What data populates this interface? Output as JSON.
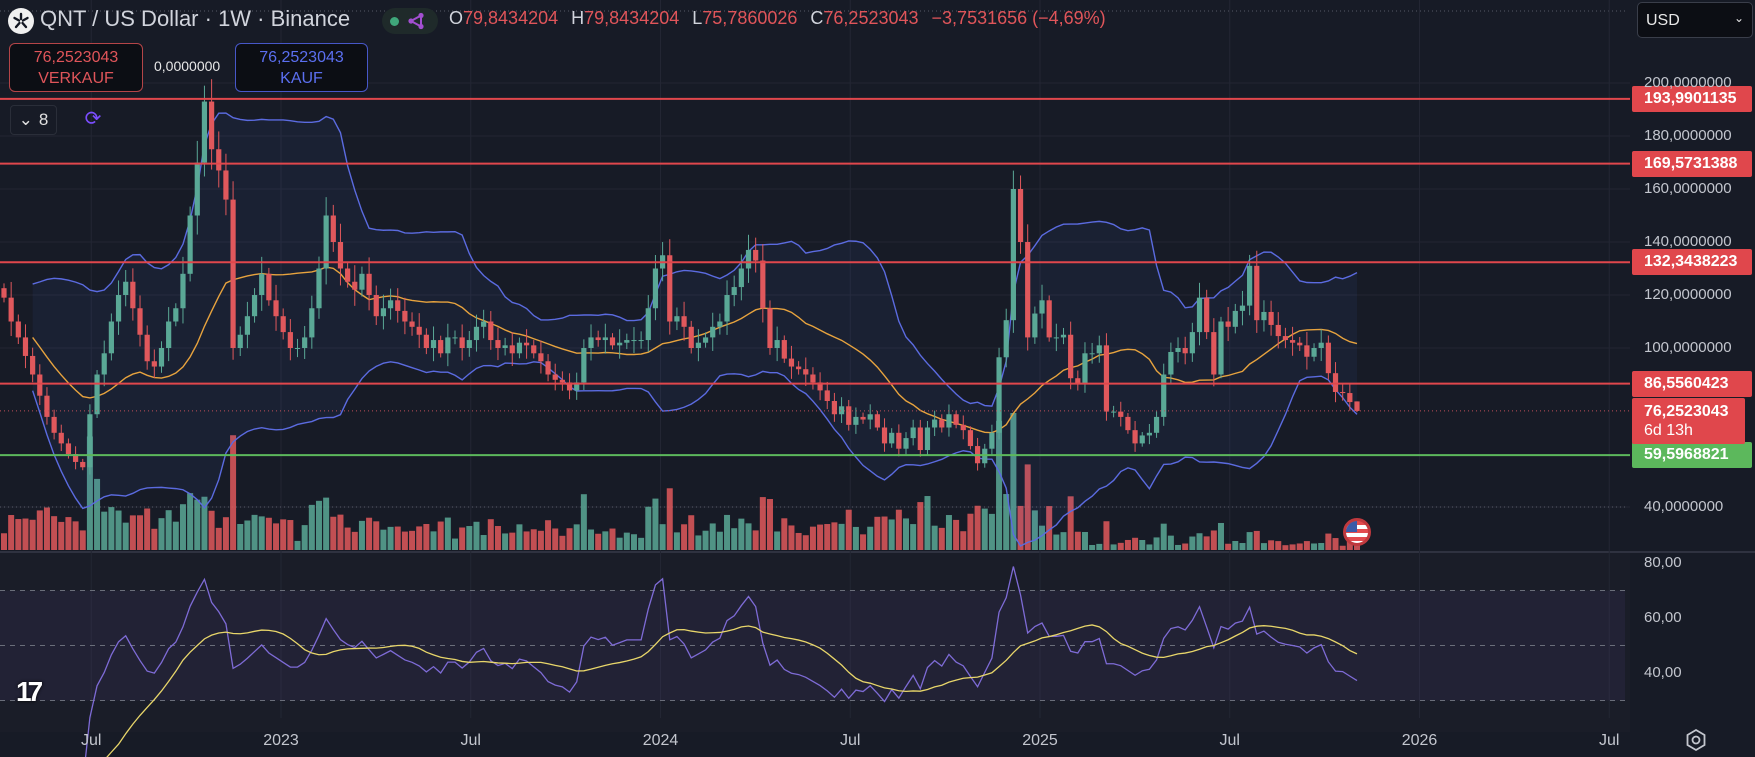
{
  "header": {
    "title": "QNT / US Dollar · 1W · Binance",
    "open_label": "O",
    "open": "79,8434204",
    "high_label": "H",
    "high": "79,8434204",
    "low_label": "L",
    "low": "75,7860026",
    "close_label": "C",
    "close": "76,2523043",
    "change": "−3,7531656 (−4,69%)"
  },
  "trade": {
    "sell_price": "76,2523043",
    "sell_label": "VERKAUF",
    "spread": "0,0000000",
    "buy_price": "76,2523043",
    "buy_label": "KAUF"
  },
  "indicators_toggle": {
    "count": "8"
  },
  "currency": {
    "selected": "USD"
  },
  "current_price": {
    "value": 76.2523043,
    "label": "76,2523043",
    "countdown": "6d 13h"
  },
  "colors": {
    "up": "#5aa896",
    "down": "#e0585c",
    "level": "#e0474c",
    "support": "#5cb85c",
    "bb": "#5b6be0",
    "sma": "#e7a33e",
    "rsi": "#7e6bd6",
    "rsi_ma": "#e8d66a"
  },
  "chart_data": {
    "type": "candlestick",
    "symbol": "QNT / US Dollar",
    "interval": "1W",
    "exchange": "Binance",
    "last_candle": {
      "open": 79.8434204,
      "high": 79.8434204,
      "low": 75.7860026,
      "close": 76.2523043
    },
    "closes": [
      119,
      110,
      104,
      97,
      90,
      82,
      74,
      68,
      64,
      60,
      57,
      55,
      75,
      90,
      98,
      110,
      120,
      125,
      115,
      105,
      95,
      93,
      100,
      110,
      115,
      128,
      150,
      170,
      193,
      175,
      167,
      156,
      100,
      105,
      112,
      120,
      128,
      118,
      112,
      106,
      100,
      100,
      104,
      115,
      130,
      150,
      140,
      130,
      125,
      122,
      128,
      120,
      112,
      115,
      118,
      114,
      110,
      108,
      105,
      100,
      103,
      98,
      104,
      104,
      100,
      103,
      108,
      110,
      103,
      100,
      101,
      98,
      102,
      101,
      98,
      95,
      90,
      88,
      87,
      84,
      87,
      100,
      104,
      103,
      104,
      101,
      102,
      103,
      103,
      103,
      115,
      130,
      135,
      110,
      112,
      108,
      100,
      102,
      104,
      108,
      110,
      120,
      123,
      130,
      137,
      133,
      115,
      100,
      103,
      96,
      93,
      92,
      90,
      87,
      84,
      80,
      75,
      78,
      71,
      74,
      73,
      75,
      70,
      64,
      68,
      62,
      66,
      70,
      61.5,
      70,
      73,
      70,
      75,
      71,
      69,
      63,
      56.5,
      62,
      68,
      96.5,
      110.5,
      160,
      140,
      104,
      113,
      118,
      104,
      104,
      105,
      88.6,
      86.8,
      98,
      98,
      101,
      76,
      76,
      74,
      69,
      64,
      67,
      68,
      74,
      90,
      98.5,
      100,
      98,
      106,
      119,
      106,
      90,
      110,
      108,
      114,
      116,
      131,
      110.5,
      113.6,
      108.7,
      104.5,
      103,
      102,
      101,
      96.7,
      100,
      102,
      90.5,
      83.4,
      83,
      79.6,
      76.2523043
    ],
    "y_axis": {
      "scale": "linear",
      "ticks": [
        {
          "value": 200,
          "label": "200,0000000"
        },
        {
          "value": 180,
          "label": "180,0000000"
        },
        {
          "value": 160,
          "label": "160,0000000"
        },
        {
          "value": 140,
          "label": "140,0000000"
        },
        {
          "value": 120,
          "label": "120,0000000"
        },
        {
          "value": 100,
          "label": "100,0000000"
        },
        {
          "value": 40,
          "label": "40,0000000"
        }
      ]
    },
    "levels": [
      {
        "value": 193.9901135,
        "label": "193,9901135",
        "kind": "resistance"
      },
      {
        "value": 169.5731388,
        "label": "169,5731388",
        "kind": "resistance"
      },
      {
        "value": 132.3438223,
        "label": "132,3438223",
        "kind": "resistance"
      },
      {
        "value": 86.5560423,
        "label": "86,5560423",
        "kind": "resistance"
      },
      {
        "value": 59.5968821,
        "label": "59,5968821",
        "kind": "support"
      }
    ],
    "x_axis": {
      "ticks": [
        {
          "t": 2022.5,
          "label": "Jul"
        },
        {
          "t": 2023.0,
          "label": "2023"
        },
        {
          "t": 2023.5,
          "label": "Jul"
        },
        {
          "t": 2024.0,
          "label": "2024"
        },
        {
          "t": 2024.5,
          "label": "Jul"
        },
        {
          "t": 2025.0,
          "label": "2025"
        },
        {
          "t": 2025.5,
          "label": "Jul"
        },
        {
          "t": 2026.0,
          "label": "2026"
        },
        {
          "t": 2026.5,
          "label": "Jul"
        }
      ]
    },
    "overlays": [
      "Bollinger Bands (20, 2)",
      "SMA 20",
      "Volume"
    ],
    "rsi": {
      "period": 14,
      "ma_period": 14,
      "upper": 70,
      "middle": 50,
      "lower": 30,
      "ticks": [
        {
          "value": 80,
          "label": "80,00"
        },
        {
          "value": 60,
          "label": "60,00"
        },
        {
          "value": 40,
          "label": "40,00"
        }
      ]
    }
  }
}
